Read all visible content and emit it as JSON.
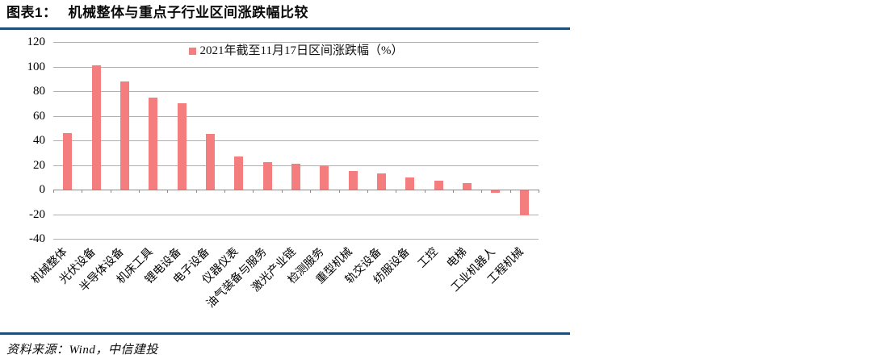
{
  "caption": {
    "label": "图表1：",
    "title": "机械整体与重点子行业区间涨跌幅比较"
  },
  "chart_data": {
    "type": "bar",
    "legend": "2021年截至11月17日区间涨跌幅（%）",
    "categories": [
      "机械整体",
      "光伏设备",
      "半导体设备",
      "机床工具",
      "锂电设备",
      "电子设备",
      "仪器仪表",
      "油气装备与服务",
      "激光产业链",
      "检测服务",
      "重型机械",
      "轨交设备",
      "纺服设备",
      "工控",
      "电梯",
      "工业机器人",
      "工程机械"
    ],
    "values": [
      46,
      101,
      88,
      75,
      70,
      45,
      27,
      22,
      21,
      20,
      15,
      13,
      10,
      7,
      5,
      -2,
      -20
    ],
    "ylim": [
      -40,
      120
    ],
    "ytick_step": 20,
    "grid": true,
    "legend_position": "top-center",
    "bar_color": "#F47D7D"
  },
  "footer": {
    "source": "资料来源：Wind，中信建投"
  },
  "colors": {
    "rule": "#1F4E79",
    "bar": "#F47D7D",
    "gridline": "#B0B0B0",
    "axis_line": "#8C8C8C"
  }
}
